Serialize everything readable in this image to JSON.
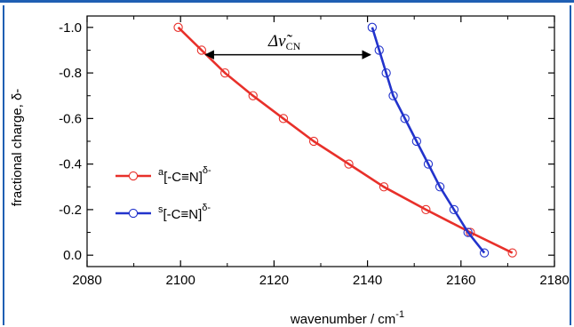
{
  "chart_data": {
    "type": "scatter",
    "xlabel": "wavenumber / cm",
    "xlabel_superscript": "-1",
    "ylabel": "fractional charge, δ-",
    "xlim": [
      2080,
      2180
    ],
    "ylim": [
      0.0,
      -1.0
    ],
    "y_reversed": true,
    "x_ticks": [
      "2080",
      "2100",
      "2120",
      "2140",
      "2160",
      "2180"
    ],
    "y_ticks": [
      "-1.0",
      "-0.8",
      "-0.6",
      "-0.4",
      "-0.2",
      "0.0"
    ],
    "y_tick_values": [
      -1.0,
      -0.8,
      -0.6,
      -0.4,
      -0.2,
      0.0
    ],
    "x_tick_values": [
      2080,
      2100,
      2120,
      2140,
      2160,
      2180
    ],
    "grid": false,
    "legend_placement": "center-left",
    "annotation": {
      "text": "Δν̃",
      "subscript": "CN",
      "from_x": 2105,
      "to_x": 2141,
      "y": -0.88
    },
    "series": [
      {
        "name_prefix": "a",
        "name_main": "[-C≡N]",
        "name_superscript": "δ-",
        "color": "#e8302a",
        "points": [
          {
            "x": 2099.5,
            "y": -1.0
          },
          {
            "x": 2104.5,
            "y": -0.9
          },
          {
            "x": 2109.5,
            "y": -0.8
          },
          {
            "x": 2115.5,
            "y": -0.7
          },
          {
            "x": 2122.0,
            "y": -0.6
          },
          {
            "x": 2128.5,
            "y": -0.5
          },
          {
            "x": 2136.0,
            "y": -0.4
          },
          {
            "x": 2143.5,
            "y": -0.3
          },
          {
            "x": 2152.5,
            "y": -0.2
          },
          {
            "x": 2162.0,
            "y": -0.1
          },
          {
            "x": 2171.0,
            "y": -0.01
          }
        ]
      },
      {
        "name_prefix": "s",
        "name_main": "[-C≡N]",
        "name_superscript": "δ-",
        "color": "#2233cc",
        "points": [
          {
            "x": 2141.0,
            "y": -1.0
          },
          {
            "x": 2142.5,
            "y": -0.9
          },
          {
            "x": 2144.0,
            "y": -0.8
          },
          {
            "x": 2145.5,
            "y": -0.7
          },
          {
            "x": 2148.0,
            "y": -0.6
          },
          {
            "x": 2150.5,
            "y": -0.5
          },
          {
            "x": 2153.0,
            "y": -0.4
          },
          {
            "x": 2155.5,
            "y": -0.3
          },
          {
            "x": 2158.5,
            "y": -0.2
          },
          {
            "x": 2161.5,
            "y": -0.1
          },
          {
            "x": 2165.0,
            "y": -0.01
          }
        ]
      }
    ]
  }
}
